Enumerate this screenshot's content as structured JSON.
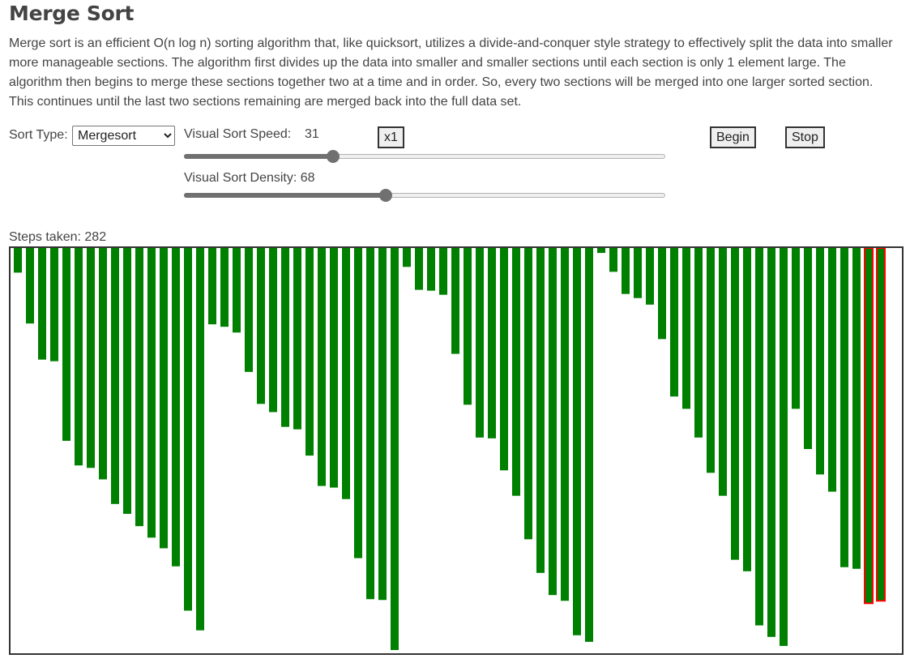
{
  "page": {
    "title": "Merge Sort",
    "description": "Merge sort is an efficient O(n log n) sorting algorithm that, like quicksort, utilizes a divide-and-conquer style strategy to effectively split the data into smaller more manageable sections. The algorithm first divides up the data into smaller and smaller sections until each section is only 1 element large. The algorithm then begins to merge these sections together two at a time and in order. So, every two sections will be merged into one larger sorted section. This continues until the last two sections remaining are merged back into the full data set."
  },
  "controls": {
    "sort_type_label": "Sort Type:",
    "sort_type_value": "Mergesort",
    "speed_label": "Visual Sort Speed:",
    "speed_value": "31",
    "speed_fraction": 0.31,
    "multiplier_label": "x1",
    "begin_label": "Begin",
    "stop_label": "Stop",
    "density_label": "Visual Sort Density: 68",
    "density_fraction": 0.42
  },
  "status": {
    "steps_text": "Steps taken: 282"
  },
  "colors": {
    "bar": "#008000",
    "highlight": "#ff0000",
    "frame": "#333333"
  },
  "chart_data": {
    "type": "bar",
    "values": [
      30,
      92,
      136,
      138,
      235,
      265,
      268,
      282,
      312,
      324,
      339,
      353,
      366,
      388,
      442,
      466,
      93,
      96,
      103,
      151,
      190,
      200,
      218,
      221,
      253,
      290,
      292,
      306,
      378,
      428,
      429,
      490,
      23,
      51,
      52,
      57,
      129,
      191,
      231,
      232,
      271,
      302,
      355,
      396,
      423,
      430,
      472,
      480,
      6,
      29,
      56,
      61,
      69,
      111,
      181,
      196,
      231,
      274,
      302,
      380,
      394,
      460,
      474,
      485,
      196,
      245,
      276,
      297,
      389,
      391,
      433,
      430
    ],
    "highlighted_indices": [
      70,
      71
    ],
    "value_max": 490,
    "direction": "downward from top"
  }
}
